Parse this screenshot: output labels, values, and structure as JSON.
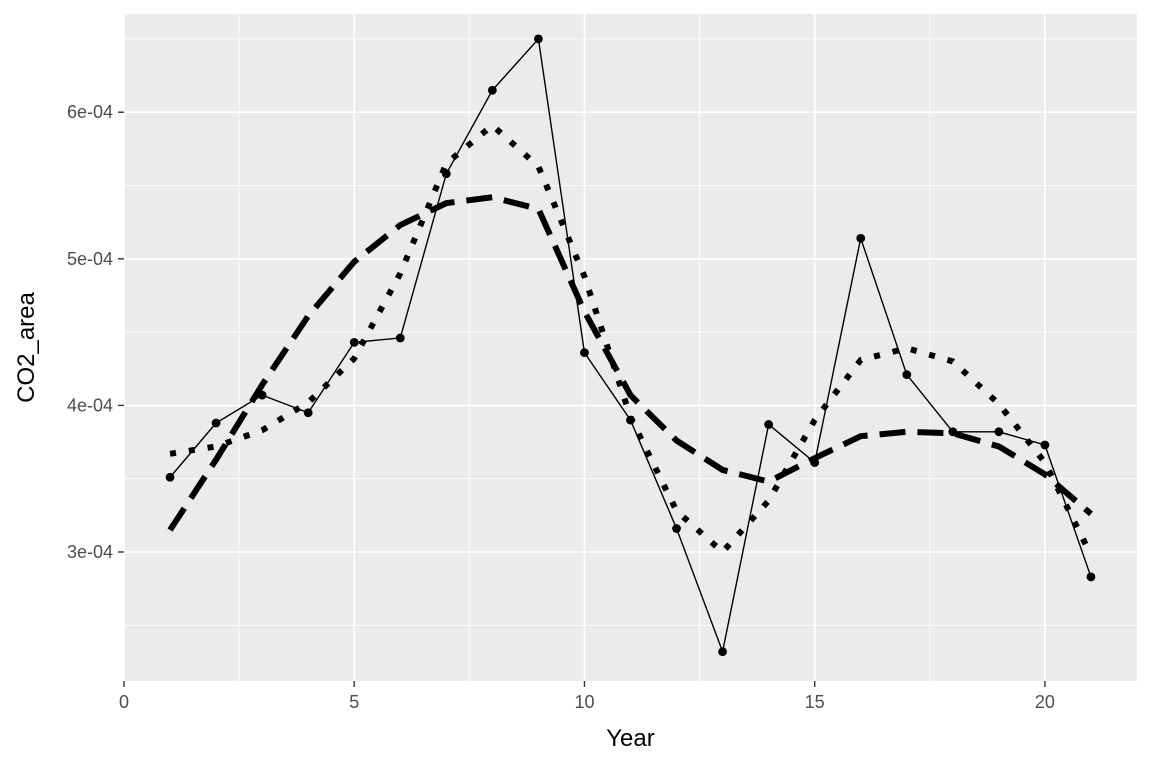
{
  "chart_data": {
    "type": "line",
    "title": "",
    "xlabel": "Year",
    "ylabel": "CO2_area",
    "xlim": [
      0,
      22
    ],
    "ylim": [
      0.000212,
      0.000667
    ],
    "x_ticks": [
      {
        "value": 0,
        "label": "0"
      },
      {
        "value": 5,
        "label": "5"
      },
      {
        "value": 10,
        "label": "10"
      },
      {
        "value": 15,
        "label": "15"
      },
      {
        "value": 20,
        "label": "20"
      }
    ],
    "y_ticks": [
      {
        "value": 0.0003,
        "label": "3e-04"
      },
      {
        "value": 0.0004,
        "label": "4e-04"
      },
      {
        "value": 0.0005,
        "label": "5e-04"
      },
      {
        "value": 0.0006,
        "label": "6e-04"
      }
    ],
    "grid": true,
    "legend": "none",
    "background": "#ebebeb",
    "grid_color": "#ffffff",
    "series": [
      {
        "style": "solid-with-points",
        "color": "#000000",
        "x": [
          1,
          2,
          3,
          4,
          5,
          6,
          7,
          8,
          9,
          10,
          11,
          12,
          13,
          14,
          15,
          16,
          17,
          18,
          19,
          20,
          21
        ],
        "values": [
          0.000351,
          0.000388,
          0.000407,
          0.000395,
          0.000443,
          0.000446,
          0.000558,
          0.000615,
          0.00065,
          0.000436,
          0.00039,
          0.000316,
          0.000232,
          0.000387,
          0.000361,
          0.000514,
          0.000421,
          0.000382,
          0.000382,
          0.000373,
          0.000283
        ]
      },
      {
        "style": "dotted",
        "color": "#000000",
        "x": [
          1,
          2,
          3,
          4,
          5,
          6,
          7,
          8,
          9,
          10,
          11,
          12,
          13,
          14,
          15,
          16,
          17,
          18,
          19,
          20,
          21
        ],
        "values": [
          0.000367,
          0.000372,
          0.000383,
          0.000402,
          0.000432,
          0.00049,
          0.000565,
          0.000591,
          0.000563,
          0.000488,
          0.000392,
          0.000328,
          0.0003,
          0.000335,
          0.00039,
          0.000431,
          0.000439,
          0.00043,
          0.000401,
          0.000361,
          0.000298
        ]
      },
      {
        "style": "dashed",
        "color": "#000000",
        "x": [
          1,
          2,
          3,
          4,
          5,
          6,
          7,
          8,
          9,
          10,
          11,
          12,
          13,
          14,
          15,
          16,
          17,
          18,
          19,
          20,
          21
        ],
        "values": [
          0.000315,
          0.000363,
          0.000414,
          0.000461,
          0.000498,
          0.000523,
          0.000538,
          0.000542,
          0.000534,
          0.000464,
          0.000407,
          0.000376,
          0.000356,
          0.000348,
          0.000364,
          0.000379,
          0.000382,
          0.000381,
          0.000372,
          0.000353,
          0.000326
        ]
      }
    ]
  }
}
